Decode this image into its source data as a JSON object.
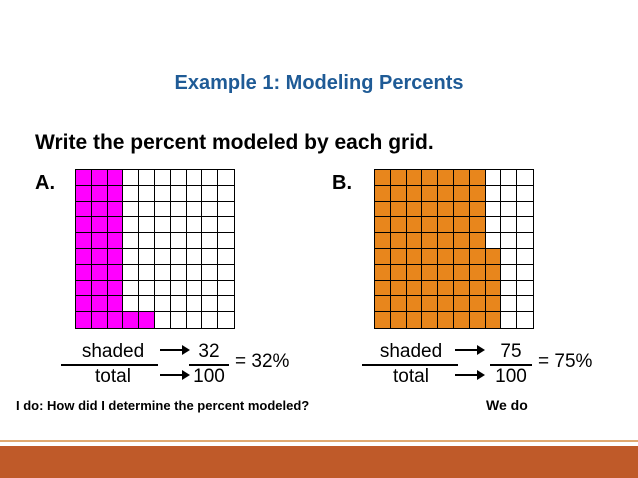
{
  "title": "Example 1: Modeling Percents",
  "instruction": "Write the percent modeled by each grid.",
  "colors": {
    "title": "#1f5b96",
    "gridA_fill": "#ff00ff",
    "gridB_fill": "#e8861c",
    "footer_bar": "#bf5a29"
  },
  "gridA": {
    "label": "A.",
    "shaded_cells": 32,
    "column_fill_rows": [
      10,
      10,
      10,
      1,
      1,
      0,
      0,
      0,
      0,
      0
    ],
    "fraction": {
      "numerator_word": "shaded",
      "denominator_word": "total",
      "numerator": "32",
      "denominator": "100",
      "result": "= 32%"
    }
  },
  "gridB": {
    "label": "B.",
    "shaded_cells": 75,
    "column_fill_rows": [
      10,
      10,
      10,
      10,
      10,
      10,
      10,
      5,
      0,
      0
    ],
    "fraction": {
      "numerator_word": "shaded",
      "denominator_word": "total",
      "numerator": "75",
      "denominator": "100",
      "result": "= 75%"
    }
  },
  "footer": {
    "question": "I do:  How did I determine the percent modeled?",
    "we_do": "We do"
  }
}
